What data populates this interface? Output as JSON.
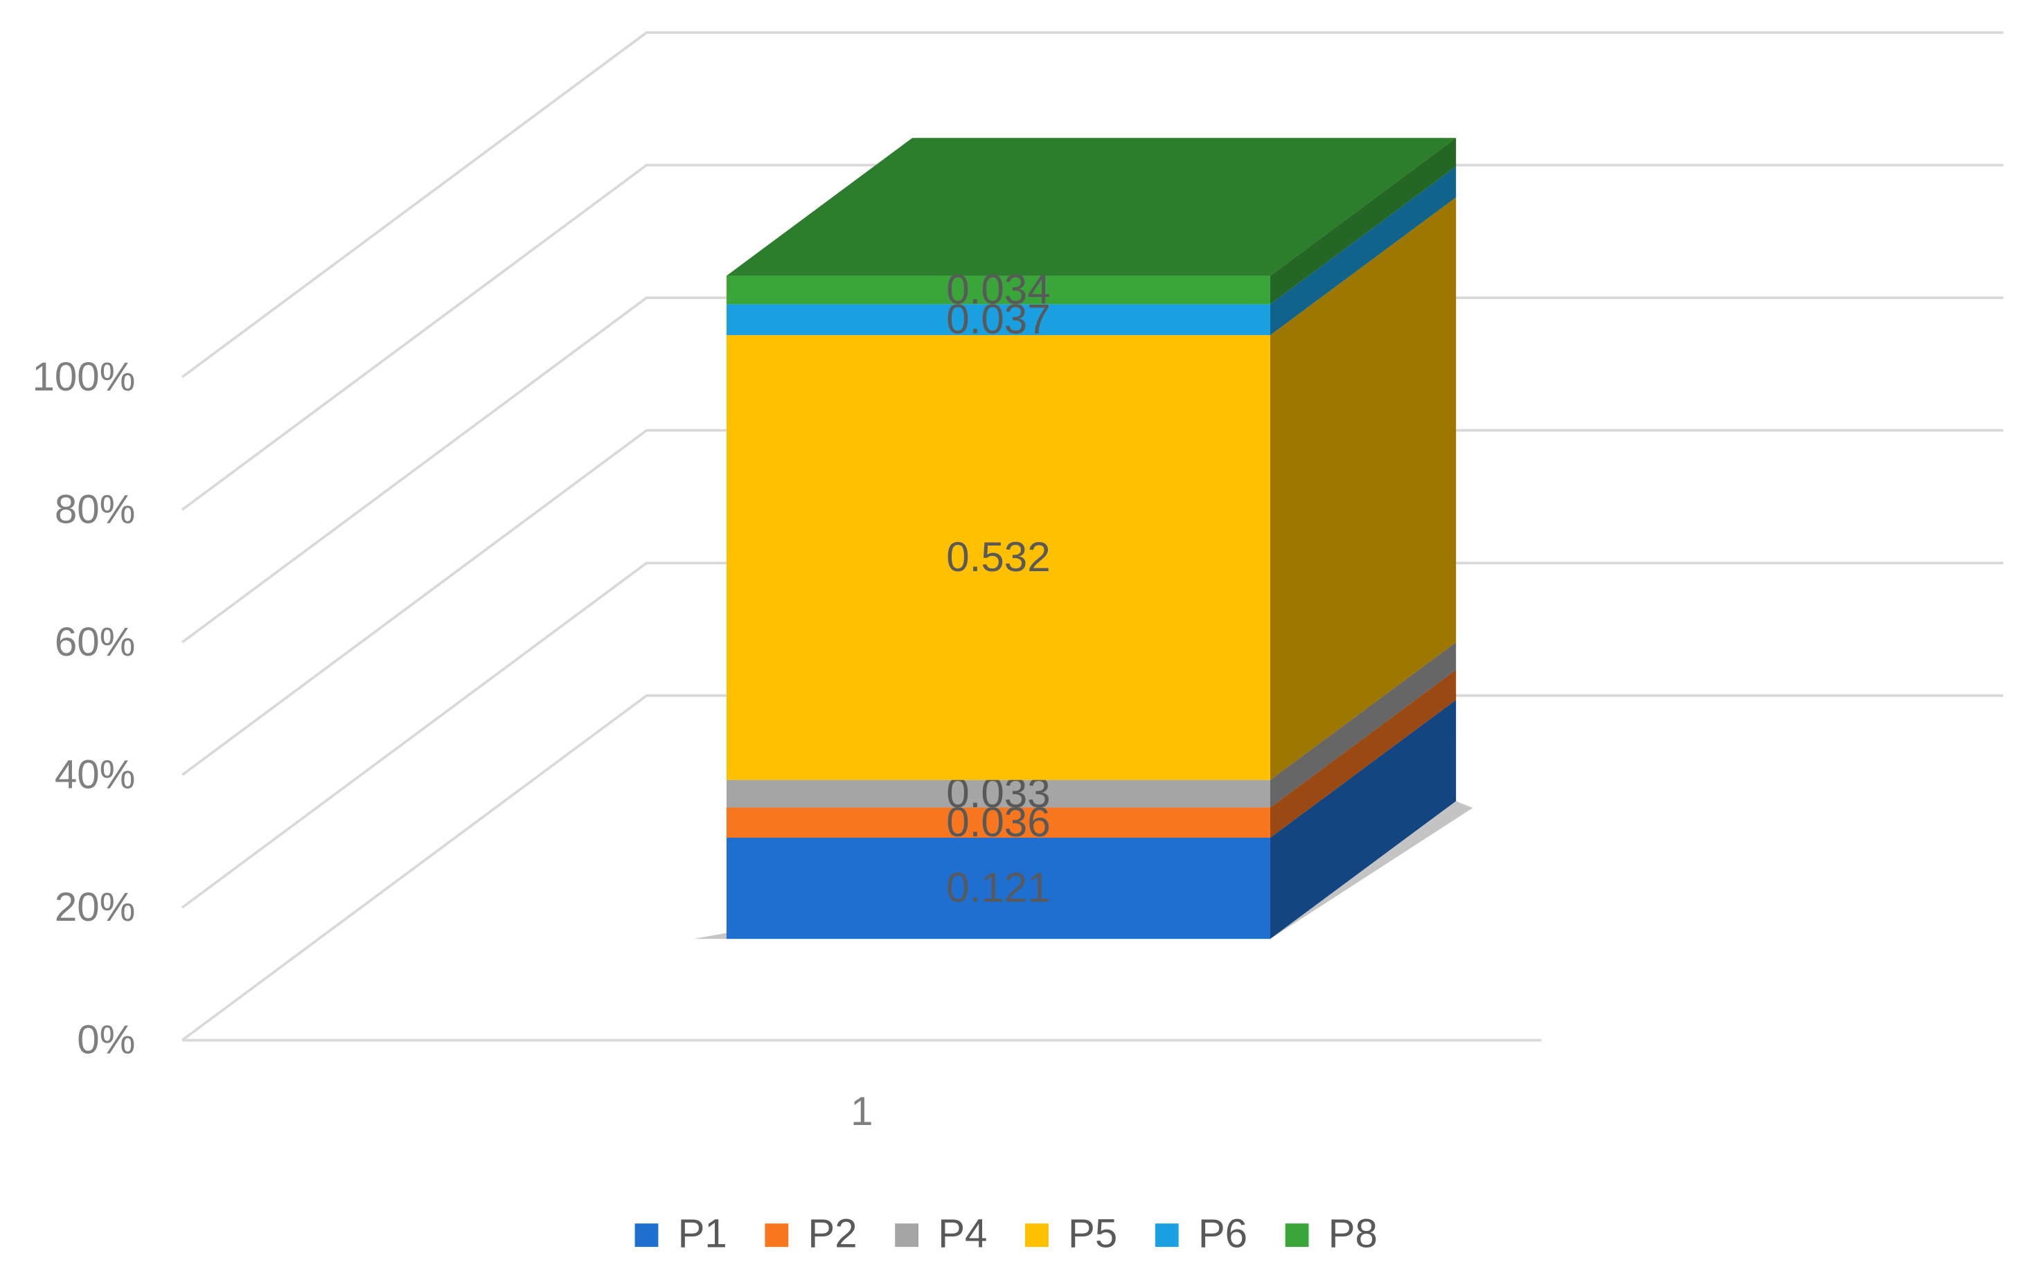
{
  "chart_data": {
    "type": "bar3d",
    "stacking": "percent",
    "categories": [
      "1"
    ],
    "series": [
      {
        "name": "P1",
        "color": "#1f6fd0",
        "values": [
          0.121
        ]
      },
      {
        "name": "P2",
        "color": "#f8761e",
        "values": [
          0.036
        ]
      },
      {
        "name": "P4",
        "color": "#a5a5a5",
        "values": [
          0.033
        ]
      },
      {
        "name": "P5",
        "color": "#ffc000",
        "values": [
          0.532
        ]
      },
      {
        "name": "P6",
        "color": "#1a9fe0",
        "values": [
          0.037
        ]
      },
      {
        "name": "P8",
        "color": "#3aa63a",
        "values": [
          0.034
        ]
      }
    ],
    "ylim": [
      0,
      100
    ],
    "yticks": [
      {
        "value": 0,
        "label": "0%"
      },
      {
        "value": 20,
        "label": "20%"
      },
      {
        "value": 40,
        "label": "40%"
      },
      {
        "value": 60,
        "label": "60%"
      },
      {
        "value": 80,
        "label": "80%"
      },
      {
        "value": 100,
        "label": "100%"
      }
    ],
    "grid": true,
    "legend": "bottom"
  }
}
